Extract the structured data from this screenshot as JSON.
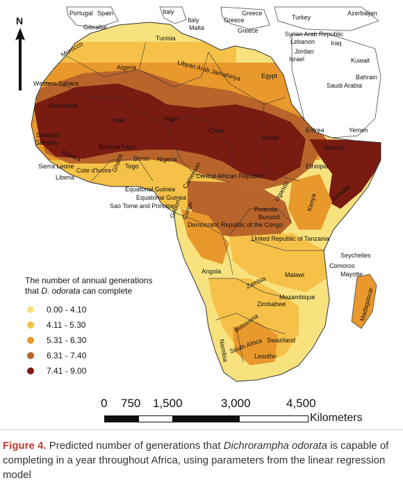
{
  "north_label": "N",
  "country_labels": [
    "Portugal",
    "Spain",
    "Italy",
    "Italy",
    "Malta",
    "Greece",
    "Greece",
    "Greece",
    "Turkey",
    "Azerbaijan",
    "Gibraltar",
    "Tunisia",
    "Syrian Arab Republic",
    "Lebanon",
    "Iraq",
    "Jordan",
    "Israel",
    "Kuwait",
    "Bahrain",
    "Morocco",
    "Algeria",
    "Libyan Arab Jamahiriya",
    "Egypt",
    "Saudi Arabia",
    "Western Sahara",
    "Mauritania",
    "Mali",
    "Niger",
    "Chad",
    "Sudan",
    "Eritrea",
    "Yemen",
    "Djibouti",
    "Senegal",
    "Gambia",
    "Guinea",
    "Burkina Faso",
    "Benin",
    "Togo",
    "Nigeria",
    "Ethiopia",
    "Sierra Leone",
    "Cote d'Ivoire",
    "Ghana",
    "Liberia",
    "Central African Republic",
    "Cameroon",
    "Somalia",
    "Uganda",
    "Kenya",
    "Equatorial Guinea",
    "Equatorial Guinea",
    "Sao Tome and Principe",
    "Gabon",
    "Congo",
    "Rwanda",
    "Burundi",
    "Democratic Republic of the Congo",
    "United Republic of Tanzania",
    "Seychelles",
    "Comoros",
    "Mayotte",
    "Angola",
    "Malawi",
    "Zambia",
    "Mozambique",
    "Madagascar",
    "Zimbabwe",
    "Namibia",
    "Botswana",
    "Swaziland",
    "South Africa",
    "Lesotho"
  ],
  "legend": {
    "title_line1": "The number of annual generations",
    "title_line2_prefix": "that",
    "title_line2_species": "D. odorata",
    "title_line2_suffix": "can complete",
    "items": [
      {
        "label": "0.00 - 4.10",
        "color": "#f7e27e"
      },
      {
        "label": "4.11 - 5.30",
        "color": "#f5c148"
      },
      {
        "label": "5.31 - 6.30",
        "color": "#e9982c"
      },
      {
        "label": "6.31 - 7.40",
        "color": "#b8642b"
      },
      {
        "label": "7.41 - 9.00",
        "color": "#7a1b12"
      }
    ]
  },
  "scale_bar": {
    "ticks": [
      "0",
      "750",
      "1,500",
      "3,000",
      "4,500"
    ],
    "unit": "Kilometers"
  },
  "caption": {
    "figure_label": "Figure 4.",
    "text_before_species": "Predicted number of generations that",
    "species": "Dichrorampha odorata",
    "text_after_species": "is capable of completing in a year throughout Africa, using parameters from the linear regression model"
  },
  "colors": {
    "sea": "#ffffff",
    "border": "#333333",
    "non_africa_land": "#ffffff"
  }
}
